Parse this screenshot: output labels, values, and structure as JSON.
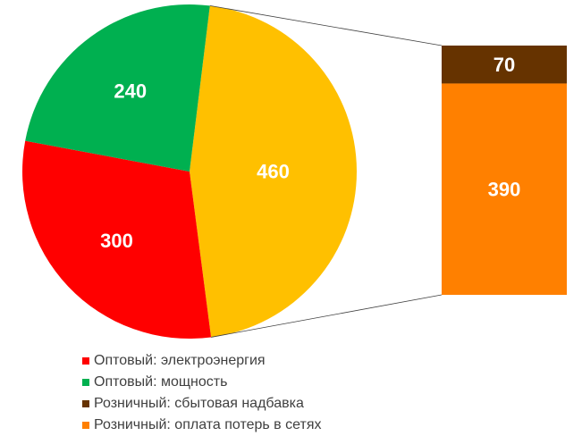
{
  "chart_data": {
    "type": "pie",
    "subtype": "bar-of-pie",
    "pie": [
      {
        "name": "Оптовый: электроэнергия",
        "value": 300,
        "color": "#FF0000"
      },
      {
        "name": "Оптовый: мощность",
        "value": 240,
        "color": "#00B050"
      },
      {
        "name": "Розничный",
        "value": 460,
        "color": "#FFC000"
      }
    ],
    "bar": [
      {
        "name": "Розничный: сбытовая надбавка",
        "value": 70,
        "color": "#663300"
      },
      {
        "name": "Розничный: оплата потерь в сетях",
        "value": 390,
        "color": "#FF8000"
      }
    ],
    "legend": [
      {
        "label": "Оптовый: электроэнергия",
        "color": "#FF0000"
      },
      {
        "label": "Оптовый: мощность",
        "color": "#00B050"
      },
      {
        "label": "Розничный: сбытовая надбавка",
        "color": "#663300"
      },
      {
        "label": "Розничный: оплата потерь в сетях",
        "color": "#FF8000"
      }
    ],
    "legend_position": "bottom-left"
  }
}
